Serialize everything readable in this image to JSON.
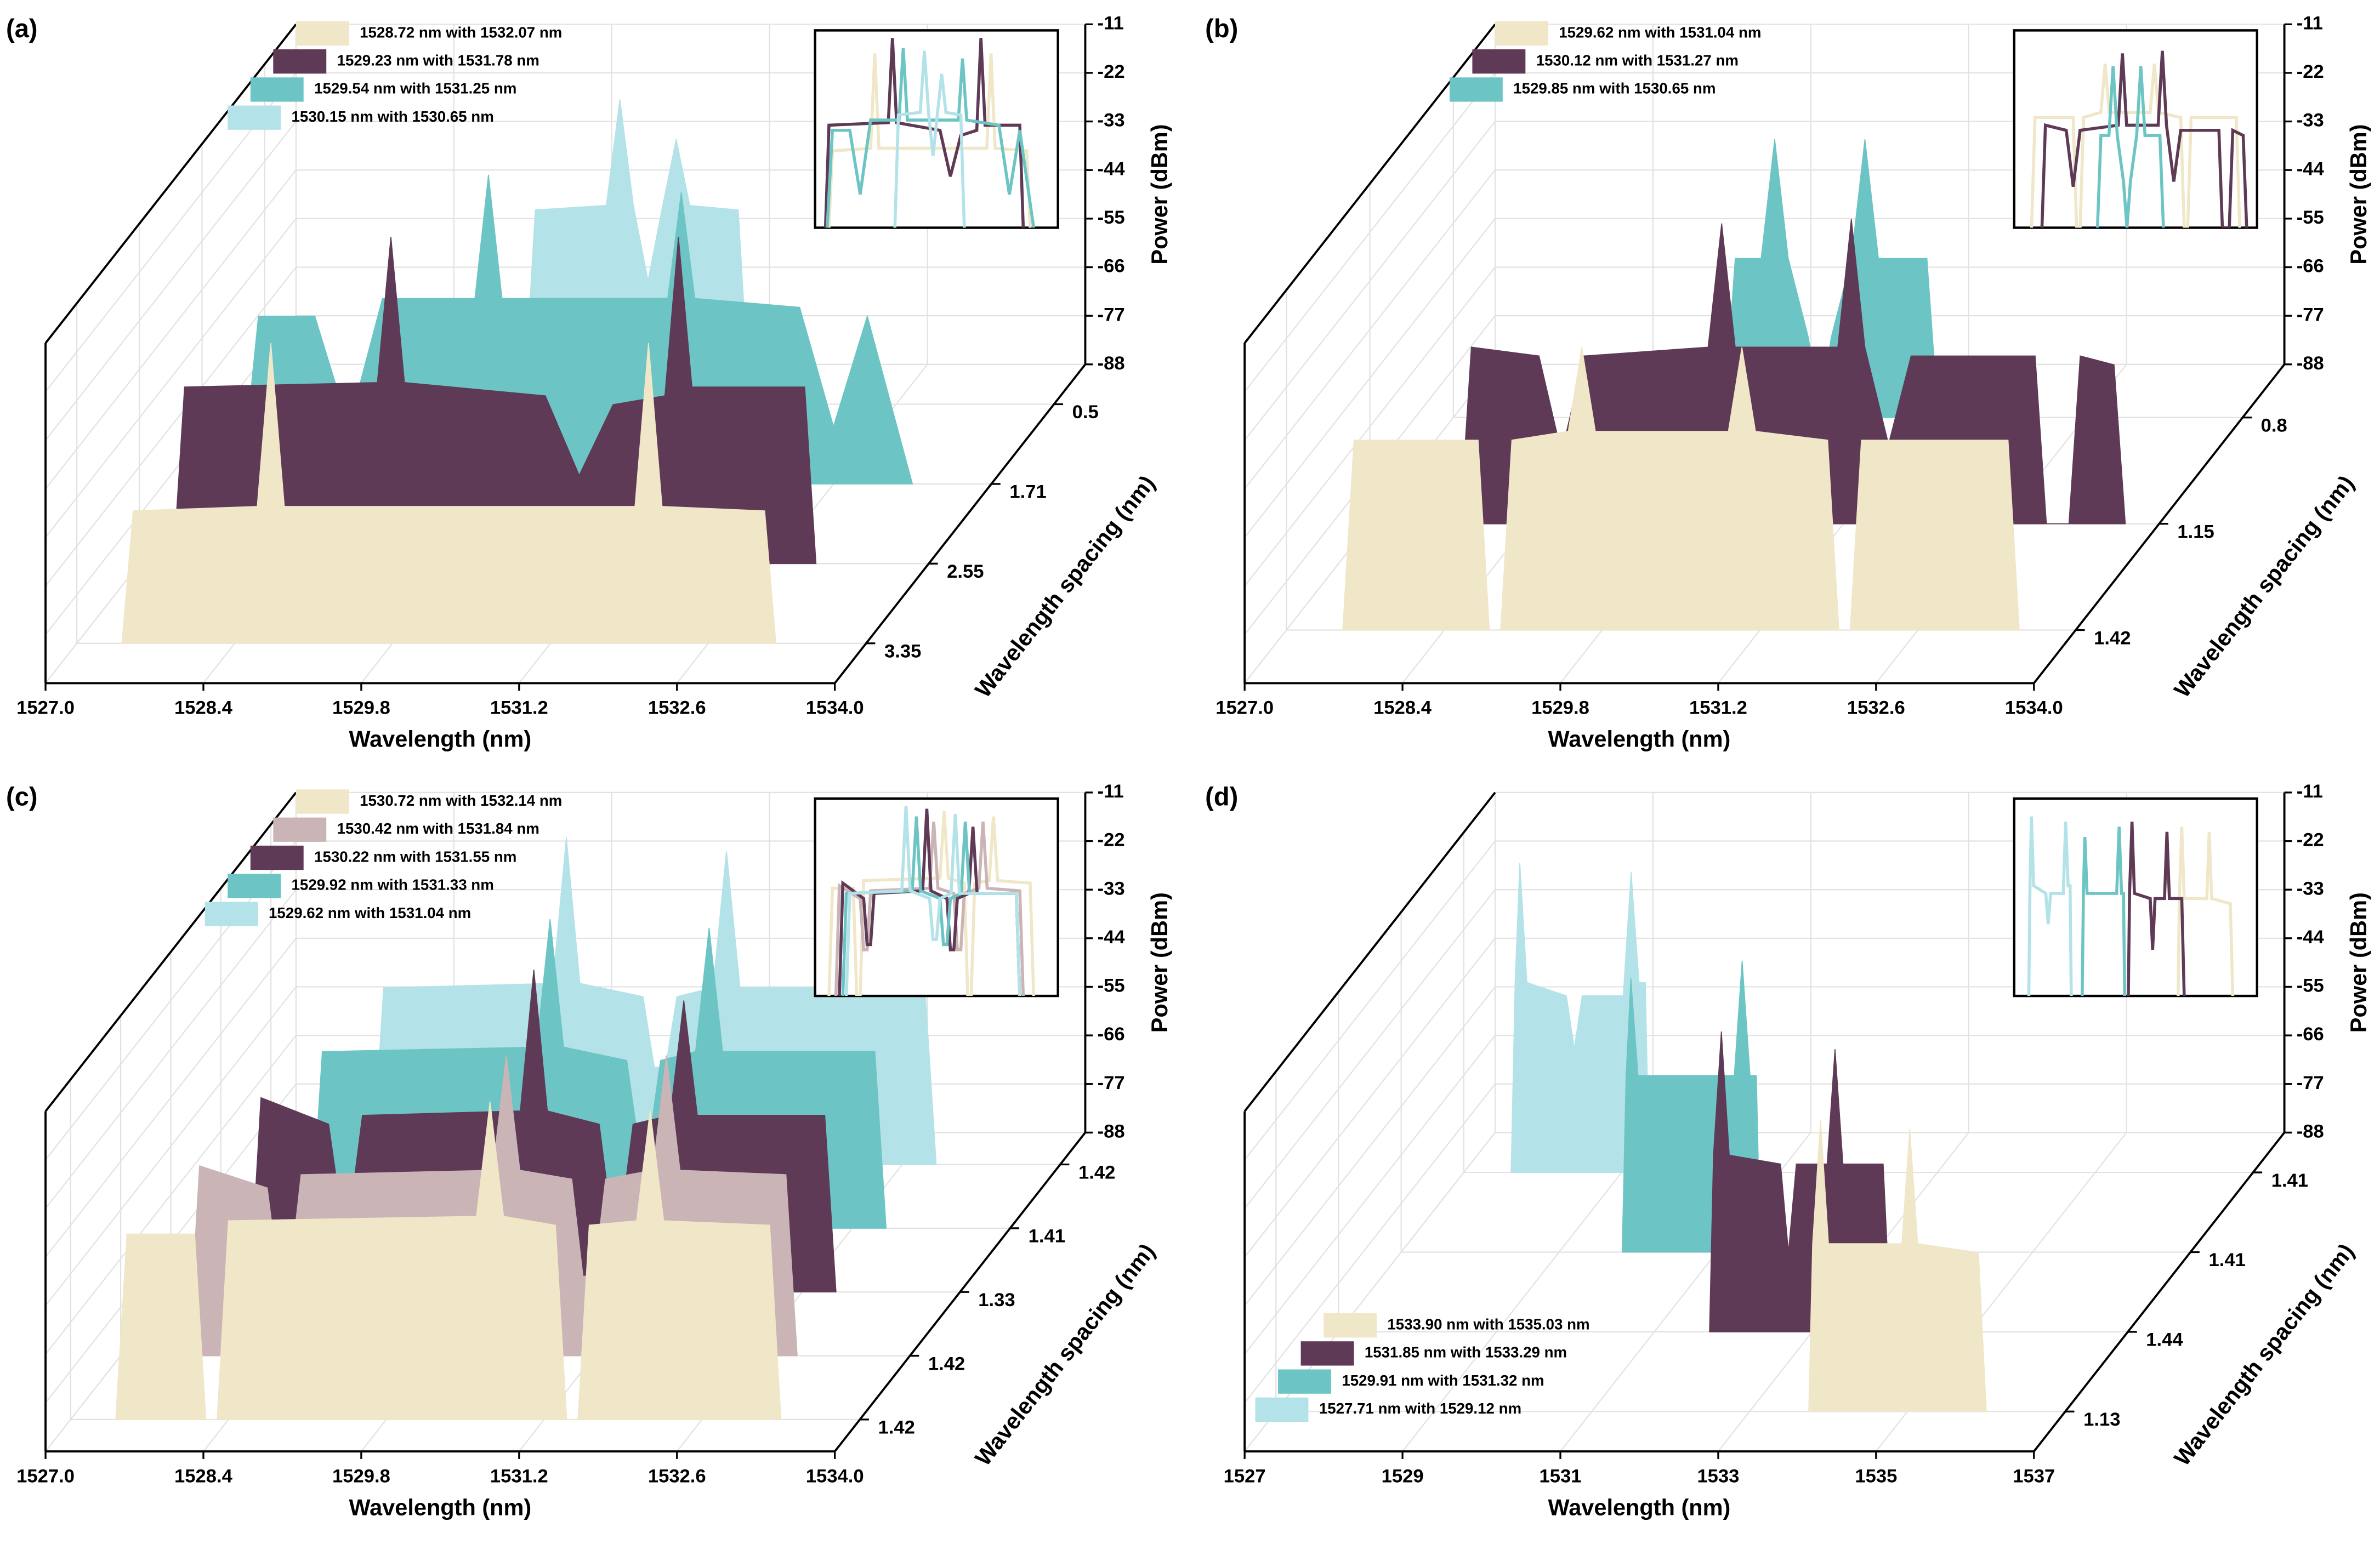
{
  "chart_data": [
    {
      "type": "waterfall",
      "panel_label": "(a)",
      "x_label": "Wavelength (nm)",
      "depth_label": "Wavelength spacing (nm)",
      "z_label": "Power (dBm)",
      "legend": "top-left",
      "xlim": [
        1527,
        1534
      ],
      "xticks": [
        {
          "value": 1527,
          "label": "1527.0"
        },
        {
          "value": 1528.4,
          "label": "1528.4"
        },
        {
          "value": 1529.8,
          "label": "1529.8"
        },
        {
          "value": 1531.2,
          "label": "1531.2"
        },
        {
          "value": 1532.6,
          "label": "1532.6"
        },
        {
          "value": 1534,
          "label": "1534.0"
        }
      ],
      "zlim": [
        -88,
        -11
      ],
      "zticks": [
        -11,
        -22,
        -33,
        -44,
        -55,
        -66,
        -77,
        -88
      ],
      "depth_categories": [
        "3.35",
        "2.55",
        "1.71",
        "0.5"
      ],
      "series": [
        {
          "name": "1528.72 nm with 1532.07 nm",
          "color": "#f0e6c8",
          "x": [
            1527.4,
            1527.5,
            1528.6,
            1528.72,
            1528.84,
            1531.95,
            1532.07,
            1532.19,
            1533.1,
            1533.2
          ],
          "values": [
            -88,
            -58,
            -57,
            -20,
            -57,
            -57,
            -20,
            -57,
            -58,
            -88
          ]
        },
        {
          "name": "1529.23 nm with 1531.78 nm",
          "color": "#5e3a56",
          "x": [
            1527.3,
            1527.4,
            1529.11,
            1529.23,
            1529.35,
            1530.6,
            1530.9,
            1531.2,
            1531.66,
            1531.78,
            1531.9,
            1532.9,
            1533.0
          ],
          "values": [
            -88,
            -48,
            -47,
            -14,
            -47,
            -50,
            -68,
            -52,
            -50,
            -14,
            -48,
            -48,
            -88
          ]
        },
        {
          "name": "1529.54 nm with 1531.25 nm",
          "color": "#6cc5c4",
          "x": [
            1527.35,
            1527.5,
            1528.0,
            1528.3,
            1528.6,
            1529.42,
            1529.54,
            1529.66,
            1531.13,
            1531.25,
            1531.37,
            1532.3,
            1532.6,
            1532.9,
            1533.3
          ],
          "values": [
            -88,
            -50,
            -50,
            -75,
            -46,
            -46,
            -18,
            -46,
            -46,
            -22,
            -46,
            -48,
            -75,
            -50,
            -88
          ]
        },
        {
          "name": "1530.15 nm with 1530.65 nm",
          "color": "#b3e2e8",
          "x": [
            1529.3,
            1529.4,
            1530.03,
            1530.15,
            1530.27,
            1530.4,
            1530.53,
            1530.65,
            1530.77,
            1531.2,
            1531.3
          ],
          "values": [
            -88,
            -44,
            -43,
            -19,
            -43,
            -60,
            -43,
            -28,
            -43,
            -44,
            -88
          ]
        }
      ]
    },
    {
      "type": "waterfall",
      "panel_label": "(b)",
      "x_label": "Wavelength (nm)",
      "depth_label": "Wavelength spacing (nm)",
      "z_label": "Power (dBm)",
      "legend": "top-left",
      "xlim": [
        1527,
        1534
      ],
      "xticks": [
        {
          "value": 1527,
          "label": "1527.0"
        },
        {
          "value": 1528.4,
          "label": "1528.4"
        },
        {
          "value": 1529.8,
          "label": "1529.8"
        },
        {
          "value": 1531.2,
          "label": "1531.2"
        },
        {
          "value": 1532.6,
          "label": "1532.6"
        },
        {
          "value": 1534,
          "label": "1534.0"
        }
      ],
      "zlim": [
        -88,
        -11
      ],
      "zticks": [
        -11,
        -22,
        -33,
        -44,
        -55,
        -66,
        -77,
        -88
      ],
      "depth_categories": [
        "1.42",
        "1.15",
        "0.8"
      ],
      "series": [
        {
          "name": "1529.62 nm with 1531.04 nm",
          "color": "#f0e6c8",
          "x": [
            1527.5,
            1527.6,
            1528.7,
            1528.8,
            1528.9,
            1529.0,
            1529.5,
            1529.62,
            1529.74,
            1530.92,
            1531.04,
            1531.16,
            1531.8,
            1531.9,
            1532.0,
            1532.1,
            1533.4,
            1533.5
          ],
          "values": [
            -88,
            -45,
            -45,
            -88,
            -88,
            -45,
            -43,
            -24,
            -43,
            -43,
            -24,
            -43,
            -45,
            -88,
            -88,
            -45,
            -45,
            -88
          ]
        },
        {
          "name": "1530.12 nm with 1531.27 nm",
          "color": "#5e3a56",
          "x": [
            1527.8,
            1527.9,
            1528.5,
            1528.7,
            1528.9,
            1530.0,
            1530.12,
            1530.24,
            1531.15,
            1531.27,
            1531.39,
            1531.6,
            1531.8,
            1532.9,
            1533.0,
            1533.2,
            1533.3,
            1533.6,
            1533.7
          ],
          "values": [
            -88,
            -48,
            -50,
            -72,
            -50,
            -48,
            -20,
            -48,
            -48,
            -19,
            -48,
            -70,
            -50,
            -50,
            -88,
            -88,
            -50,
            -52,
            -88
          ]
        },
        {
          "name": "1529.85 nm with 1530.65 nm",
          "color": "#6cc5c4",
          "x": [
            1529.4,
            1529.5,
            1529.73,
            1529.85,
            1529.97,
            1530.15,
            1530.25,
            1530.35,
            1530.53,
            1530.65,
            1530.77,
            1531.2,
            1531.3
          ],
          "values": [
            -88,
            -52,
            -52,
            -25,
            -52,
            -70,
            -88,
            -70,
            -52,
            -25,
            -52,
            -52,
            -88
          ]
        }
      ]
    },
    {
      "type": "waterfall",
      "panel_label": "(c)",
      "x_label": "Wavelength (nm)",
      "depth_label": "Wavelength spacing (nm)",
      "z_label": "Power (dBm)",
      "legend": "top-left",
      "xlim": [
        1527,
        1534
      ],
      "xticks": [
        {
          "value": 1527,
          "label": "1527.0"
        },
        {
          "value": 1528.4,
          "label": "1528.4"
        },
        {
          "value": 1529.8,
          "label": "1529.8"
        },
        {
          "value": 1531.2,
          "label": "1531.2"
        },
        {
          "value": 1532.6,
          "label": "1532.6"
        },
        {
          "value": 1534,
          "label": "1534.0"
        }
      ],
      "zlim": [
        -88,
        -11
      ],
      "zticks": [
        -11,
        -22,
        -33,
        -44,
        -55,
        -66,
        -77,
        -88
      ],
      "depth_categories": [
        "1.42",
        "1.42",
        "1.33",
        "1.41",
        "1.42"
      ],
      "series": [
        {
          "name": "1530.72 nm with 1532.14 nm",
          "color": "#f0e6c8",
          "x": [
            1527.4,
            1527.5,
            1528.1,
            1528.2,
            1528.3,
            1528.4,
            1530.6,
            1530.72,
            1530.84,
            1531.3,
            1531.4,
            1531.5,
            1531.6,
            1532.02,
            1532.14,
            1532.26,
            1533.2,
            1533.3
          ],
          "values": [
            -88,
            -46,
            -46,
            -88,
            -88,
            -43,
            -42,
            -16,
            -42,
            -44,
            -88,
            -88,
            -44,
            -43,
            -18,
            -43,
            -44,
            -88
          ]
        },
        {
          "name": "1530.42 nm with 1531.84 nm",
          "color": "#cbb4b6",
          "x": [
            1527.6,
            1527.7,
            1528.3,
            1528.4,
            1528.5,
            1528.6,
            1530.3,
            1530.42,
            1530.54,
            1531.0,
            1531.1,
            1531.2,
            1531.3,
            1531.72,
            1531.84,
            1531.96,
            1532.9,
            1533.0
          ],
          "values": [
            -88,
            -45,
            -50,
            -70,
            -70,
            -47,
            -46,
            -20,
            -46,
            -48,
            -70,
            -70,
            -48,
            -46,
            -20,
            -46,
            -47,
            -88
          ]
        },
        {
          "name": "1530.22 nm with 1531.55 nm",
          "color": "#5e3a56",
          "x": [
            1527.7,
            1527.8,
            1528.4,
            1528.5,
            1528.6,
            1528.7,
            1530.1,
            1530.22,
            1530.34,
            1530.8,
            1530.9,
            1531.0,
            1531.1,
            1531.43,
            1531.55,
            1531.67,
            1532.8,
            1532.9
          ],
          "values": [
            -88,
            -44,
            -50,
            -68,
            -68,
            -48,
            -47,
            -15,
            -47,
            -50,
            -70,
            -70,
            -50,
            -48,
            -22,
            -48,
            -48,
            -88
          ]
        },
        {
          "name": "1529.92 nm with 1531.33 nm",
          "color": "#6cc5c4",
          "x": [
            1527.8,
            1527.9,
            1529.8,
            1529.92,
            1530.04,
            1530.6,
            1530.7,
            1530.8,
            1530.9,
            1531.21,
            1531.33,
            1531.45,
            1532.8,
            1532.9
          ],
          "values": [
            -88,
            -48,
            -47,
            -18,
            -47,
            -50,
            -68,
            -68,
            -50,
            -48,
            -20,
            -48,
            -48,
            -88
          ]
        },
        {
          "name": "1529.62 nm with 1531.04 nm",
          "color": "#b3e2e8",
          "x": [
            1527.9,
            1528.0,
            1529.5,
            1529.62,
            1529.74,
            1530.3,
            1530.4,
            1530.5,
            1530.6,
            1530.92,
            1531.04,
            1531.16,
            1532.8,
            1532.9
          ],
          "values": [
            -88,
            -48,
            -47,
            -14,
            -47,
            -50,
            -66,
            -66,
            -50,
            -48,
            -17,
            -48,
            -48,
            -88
          ]
        }
      ]
    },
    {
      "type": "waterfall",
      "panel_label": "(d)",
      "x_label": "Wavelength (nm)",
      "depth_label": "Wavelength spacing (nm)",
      "z_label": "Power (dBm)",
      "legend": "bottom-left",
      "xlim": [
        1527,
        1537
      ],
      "xticks": [
        1527,
        1529,
        1531,
        1533,
        1535,
        1537
      ],
      "zlim": [
        -88,
        -11
      ],
      "zticks": [
        -11,
        -22,
        -33,
        -44,
        -55,
        -66,
        -77,
        -88
      ],
      "depth_categories": [
        "1.13",
        "1.44",
        "1.41",
        "1.41"
      ],
      "series": [
        {
          "name": "1533.90 nm with 1535.03 nm",
          "color": "#f0e6c8",
          "x": [
            1533.75,
            1533.8,
            1533.9,
            1534.0,
            1534.93,
            1535.03,
            1535.13,
            1535.9,
            1536.0
          ],
          "values": [
            -88,
            -50,
            -22,
            -50,
            -50,
            -24,
            -50,
            -52,
            -88
          ]
        },
        {
          "name": "1531.85 nm with 1533.29 nm",
          "color": "#5e3a56",
          "x": [
            1531.7,
            1531.75,
            1531.85,
            1531.95,
            1532.6,
            1532.7,
            1532.8,
            1533.19,
            1533.29,
            1533.39,
            1533.9,
            1534.0
          ],
          "values": [
            -88,
            -48,
            -20,
            -48,
            -50,
            -70,
            -50,
            -50,
            -24,
            -50,
            -50,
            -88
          ]
        },
        {
          "name": "1529.91 nm with 1531.32 nm",
          "color": "#6cc5c4",
          "x": [
            1529.8,
            1529.85,
            1529.91,
            1530.0,
            1531.22,
            1531.32,
            1531.42,
            1531.5,
            1531.55
          ],
          "values": [
            -88,
            -48,
            -26,
            -48,
            -48,
            -22,
            -48,
            -48,
            -88
          ]
        },
        {
          "name": "1527.71 nm with 1529.12 nm",
          "color": "#b3e2e8",
          "x": [
            1527.6,
            1527.65,
            1527.71,
            1527.8,
            1528.3,
            1528.4,
            1528.5,
            1529.02,
            1529.12,
            1529.22,
            1529.3,
            1529.35
          ],
          "values": [
            -88,
            -45,
            -18,
            -45,
            -48,
            -60,
            -48,
            -48,
            -20,
            -45,
            -45,
            -88
          ]
        }
      ]
    }
  ]
}
